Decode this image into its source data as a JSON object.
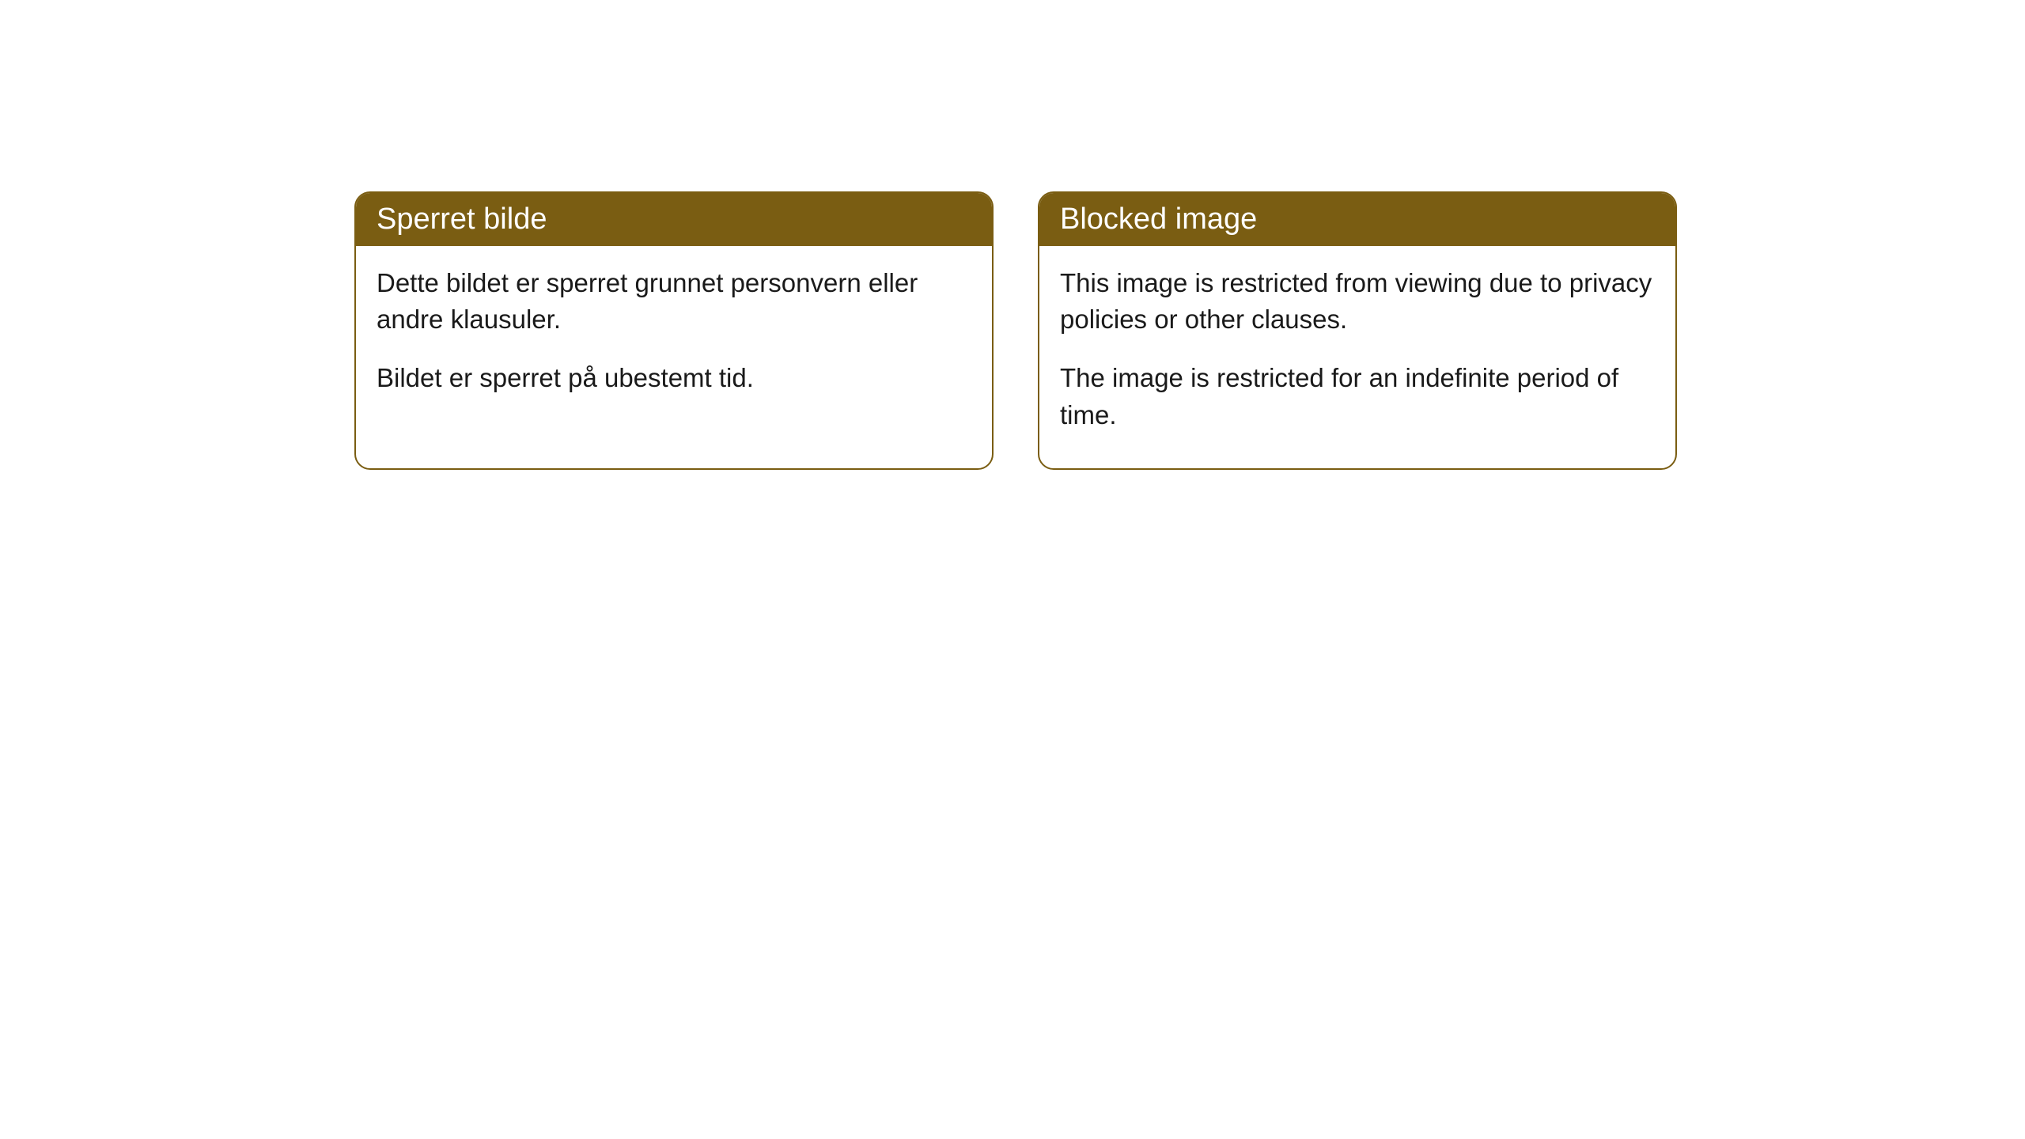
{
  "cards": [
    {
      "title": "Sperret bilde",
      "paragraph1": "Dette bildet er sperret grunnet personvern eller andre klausuler.",
      "paragraph2": "Bildet er sperret på ubestemt tid."
    },
    {
      "title": "Blocked image",
      "paragraph1": "This image is restricted from viewing due to privacy policies or other clauses.",
      "paragraph2": "The image is restricted for an indefinite period of time."
    }
  ],
  "styling": {
    "header_background": "#7a5d12",
    "header_text_color": "#ffffff",
    "border_color": "#7a5d12",
    "body_background": "#ffffff",
    "body_text_color": "#1a1a1a",
    "border_radius": 20,
    "header_fontsize": 38,
    "body_fontsize": 33
  }
}
